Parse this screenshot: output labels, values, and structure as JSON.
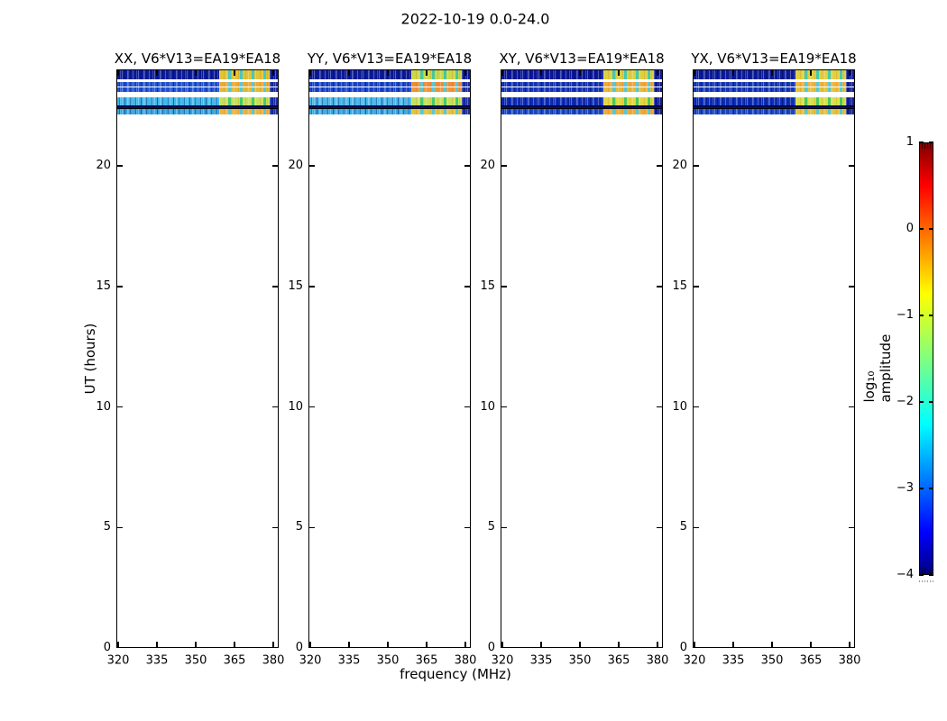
{
  "chart_data": {
    "type": "heatmap",
    "title": "2022-10-19 0.0-24.0",
    "xlabel": "frequency (MHz)",
    "ylabel": "UT (hours)",
    "x_axis": {
      "range_mhz": [
        319.3,
        382.1
      ],
      "tick_values": [
        320,
        335,
        350,
        365,
        380
      ],
      "tick_labels": [
        "320",
        "335",
        "350",
        "365",
        "380"
      ]
    },
    "y_axis": {
      "range_hours": [
        0,
        24
      ],
      "tick_values": [
        0,
        5,
        10,
        15,
        20
      ],
      "tick_labels": [
        "0",
        "5",
        "10",
        "15",
        "20"
      ]
    },
    "colorbar": {
      "label": "log₁₀ amplitude",
      "range": [
        -4,
        1
      ],
      "tick_values": [
        1,
        0,
        -1,
        -2,
        -3,
        -4
      ],
      "tick_labels": [
        "1",
        "0",
        "−1",
        "−2",
        "−3",
        "−4"
      ],
      "colormap": "jet",
      "gradient_stops": [
        {
          "color": "#00007f",
          "pos": 0
        },
        {
          "color": "#0000ff",
          "pos": 10
        },
        {
          "color": "#00ffff",
          "pos": 35
        },
        {
          "color": "#7fff7f",
          "pos": 50
        },
        {
          "color": "#ffff00",
          "pos": 65
        },
        {
          "color": "#ff0000",
          "pos": 90
        },
        {
          "color": "#7f0000",
          "pos": 100
        }
      ]
    },
    "data_time_coverage_hours": [
      22.1,
      24.0
    ],
    "block_band_mhz": [
      359,
      378.6
    ],
    "panels": [
      {
        "label": "XX, V6*V13=EA19*EA18",
        "stripes": [
          {
            "hours": [
              23.6,
              24.0
            ],
            "left": "#0c1c9a",
            "block": "#e2c436",
            "sep": "#44c8c8",
            "right": "#0c1c9a"
          },
          {
            "hours": [
              23.28,
              23.47
            ],
            "left": "#2356d4",
            "block": "#eeaa36",
            "sep": "#55c8dc",
            "right": "#1a2ea6"
          },
          {
            "hours": [
              23.06,
              23.24
            ],
            "left": "#2356d4",
            "block": "#e2bc36",
            "sep": "#55c8dc",
            "right": "#1a2ea6"
          },
          {
            "hours": [
              22.52,
              22.84
            ],
            "left": "#3eb6e8",
            "block": "#c6e05c",
            "sep": "#46c86e",
            "right": "#1a2ea6"
          },
          {
            "hours": [
              22.36,
              22.5
            ],
            "full": "#000d7a"
          },
          {
            "hours": [
              22.12,
              22.34
            ],
            "left": "#34a4de",
            "block": "#eeb440",
            "sep": "#55c8dc",
            "right": "#1a2ea6"
          }
        ]
      },
      {
        "label": "YY, V6*V13=EA19*EA18",
        "stripes": [
          {
            "hours": [
              23.6,
              24.0
            ],
            "left": "#0c1c9a",
            "block": "#ccd848",
            "sep": "#44c8a0",
            "right": "#0c1c9a"
          },
          {
            "hours": [
              23.28,
              23.47
            ],
            "left": "#1c48cc",
            "block": "#ee8c36",
            "sep": "#55c8dc",
            "right": "#1a2ea6"
          },
          {
            "hours": [
              23.06,
              23.24
            ],
            "left": "#1c48cc",
            "block": "#ee9836",
            "sep": "#55c8dc",
            "right": "#1a2ea6"
          },
          {
            "hours": [
              22.52,
              22.84
            ],
            "left": "#48b6e8",
            "block": "#c6e05c",
            "sep": "#46c86e",
            "right": "#1a2ea6"
          },
          {
            "hours": [
              22.36,
              22.5
            ],
            "full": "#000d7a"
          },
          {
            "hours": [
              22.12,
              22.34
            ],
            "left": "#38aae2",
            "block": "#e2c440",
            "sep": "#55c8dc",
            "right": "#1a2ea6"
          }
        ]
      },
      {
        "label": "XY, V6*V13=EA19*EA18",
        "stripes": [
          {
            "hours": [
              23.6,
              24.0
            ],
            "left": "#0a189a",
            "block": "#dcd040",
            "sep": "#44c8b4",
            "right": "#0c1c9a"
          },
          {
            "hours": [
              23.28,
              23.47
            ],
            "left": "#1636b8",
            "block": "#eea83c",
            "sep": "#55c8dc",
            "right": "#101c96"
          },
          {
            "hours": [
              23.06,
              23.24
            ],
            "left": "#1636b8",
            "block": "#e2bc36",
            "sep": "#55c8dc",
            "right": "#101c96"
          },
          {
            "hours": [
              22.52,
              22.84
            ],
            "left": "#0e2eb6",
            "block": "#e2d83e",
            "sep": "#48c862",
            "right": "#101c96"
          },
          {
            "hours": [
              22.36,
              22.5
            ],
            "full": "#000d7a"
          },
          {
            "hours": [
              22.12,
              22.34
            ],
            "left": "#1c4aca",
            "block": "#eeac36",
            "sep": "#55c8dc",
            "right": "#101c96"
          }
        ]
      },
      {
        "label": "YX, V6*V13=EA19*EA18",
        "stripes": [
          {
            "hours": [
              23.6,
              24.0
            ],
            "left": "#0c1c9a",
            "block": "#e2d040",
            "sep": "#44c8b4",
            "right": "#0c1c9a"
          },
          {
            "hours": [
              23.28,
              23.47
            ],
            "left": "#163ab8",
            "block": "#eeb43c",
            "sep": "#55c8dc",
            "right": "#101c96"
          },
          {
            "hours": [
              23.06,
              23.24
            ],
            "left": "#163ab8",
            "block": "#e2c436",
            "sep": "#55c8dc",
            "right": "#101c96"
          },
          {
            "hours": [
              22.52,
              22.84
            ],
            "left": "#0e2eb6",
            "block": "#d8e048",
            "sep": "#48c862",
            "right": "#101c96"
          },
          {
            "hours": [
              22.36,
              22.5
            ],
            "full": "#000d7a"
          },
          {
            "hours": [
              22.12,
              22.34
            ],
            "left": "#1c48c6",
            "block": "#e2c43c",
            "sep": "#55c8dc",
            "right": "#101c96"
          }
        ]
      }
    ]
  }
}
